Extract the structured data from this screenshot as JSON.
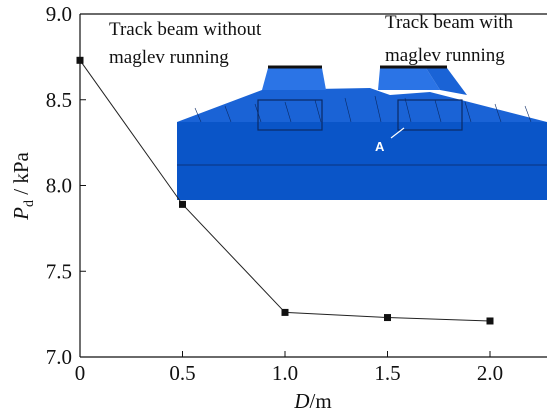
{
  "chart_data": {
    "type": "line",
    "x": [
      0,
      0.5,
      1.0,
      1.5,
      2.0
    ],
    "series": [
      {
        "values": [
          8.73,
          7.89,
          7.26,
          7.23,
          7.21
        ]
      }
    ],
    "xlabel": {
      "main": "D",
      "unit": "/m"
    },
    "ylabel": {
      "main": "P",
      "sub": "d",
      "unit": " / kPa"
    },
    "xlim": [
      0,
      2.3
    ],
    "ylim": [
      7.0,
      9.0
    ],
    "xticks": [
      "0",
      "0.5",
      "1.0",
      "1.5",
      "2.0"
    ],
    "yticks": [
      "7.0",
      "7.5",
      "8.0",
      "8.5",
      "9.0"
    ],
    "grid": false,
    "marker": "square",
    "annotations": {
      "left_line1": "Track beam without",
      "left_line2": "maglev running",
      "right_line1": "Track beam with",
      "right_line2": "maglev running",
      "point_label": "A"
    },
    "inset_colors": {
      "base": "#0a55c8",
      "face": "#1a63d6",
      "top": "#2b74e6",
      "mesh": "#0a2a66"
    }
  }
}
